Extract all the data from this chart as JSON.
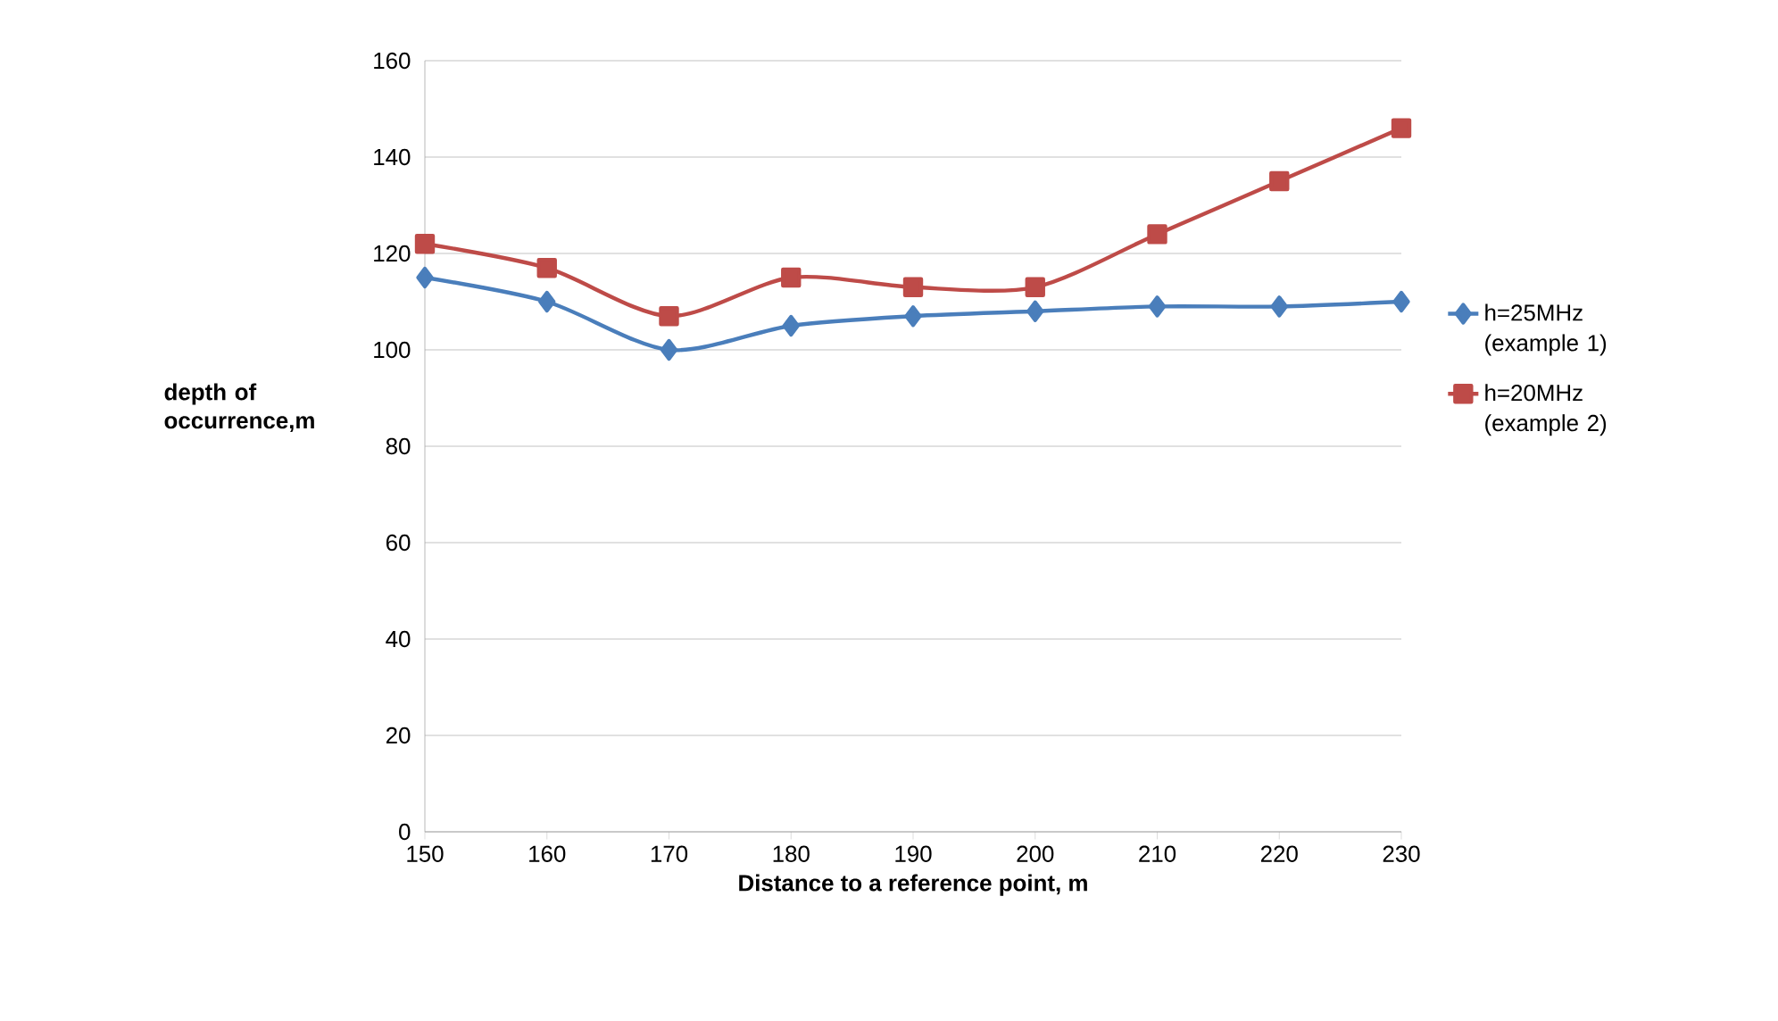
{
  "chart_data": {
    "type": "line",
    "xlabel": "Distance to a reference point, m",
    "ylabel": "depth of occurrence,m",
    "x": [
      150,
      160,
      170,
      180,
      190,
      200,
      210,
      220,
      230
    ],
    "series": [
      {
        "name": "h=25MHz (example 1)",
        "color": "#4a7ebb",
        "marker": "diamond",
        "values": [
          115,
          110,
          100,
          105,
          107,
          108,
          109,
          109,
          110
        ]
      },
      {
        "name": "h=20MHz (example 2)",
        "color": "#be4b48",
        "marker": "square",
        "values": [
          122,
          117,
          107,
          115,
          113,
          113,
          124,
          135,
          146
        ]
      }
    ],
    "xlim": [
      150,
      230
    ],
    "xticks": [
      150,
      160,
      170,
      180,
      190,
      200,
      210,
      220,
      230
    ],
    "ylim": [
      0,
      160
    ],
    "yticks": [
      0,
      20,
      40,
      60,
      80,
      100,
      120,
      140,
      160
    ],
    "grid": "y",
    "legend": "right"
  }
}
